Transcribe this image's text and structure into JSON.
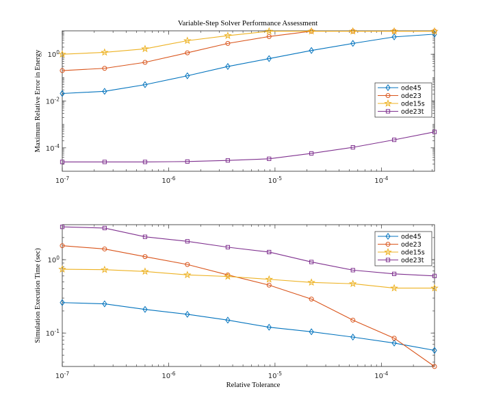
{
  "figure": {
    "title": "Variable-Step Solver Performance Assessment"
  },
  "chart_data": [
    {
      "type": "line",
      "title": "Variable-Step Solver Performance Assessment",
      "xlabel": "",
      "ylabel": "Maximum Relative Error in Energy",
      "xscale": "log",
      "yscale": "log",
      "xlim": [
        1e-07,
        0.000316
      ],
      "ylim": [
        1e-05,
        10
      ],
      "xticks": [
        1e-07,
        1e-06,
        1e-05,
        0.0001
      ],
      "xtick_labels": [
        {
          "base": "10",
          "exp": "-7"
        },
        {
          "base": "10",
          "exp": "-6"
        },
        {
          "base": "10",
          "exp": "-5"
        },
        {
          "base": "10",
          "exp": "-4"
        }
      ],
      "yticks": [
        0.0001,
        0.01,
        1
      ],
      "ytick_labels": [
        {
          "base": "10",
          "exp": "-4"
        },
        {
          "base": "10",
          "exp": "-2"
        },
        {
          "base": "10",
          "exp": "0"
        }
      ],
      "grid": false,
      "legend_position": "right",
      "x": [
        1e-07,
        2.5e-07,
        6e-07,
        1.5e-06,
        3.6e-06,
        8.8e-06,
        2.2e-05,
        5.4e-05,
        0.000132,
        0.000316
      ],
      "series": [
        {
          "name": "ode45",
          "color": "#0072BD",
          "marker": "diamond",
          "values": [
            0.021,
            0.026,
            0.05,
            0.12,
            0.3,
            0.65,
            1.45,
            2.9,
            5.5,
            7.2
          ]
        },
        {
          "name": "ode23",
          "color": "#D95319",
          "marker": "circle",
          "values": [
            0.2,
            0.25,
            0.45,
            1.15,
            2.9,
            5.7,
            9.6,
            9.6,
            9.6,
            9.6
          ]
        },
        {
          "name": "ode15s",
          "color": "#EDB120",
          "marker": "star",
          "values": [
            1.0,
            1.2,
            1.7,
            3.8,
            6.2,
            9.6,
            9.6,
            9.6,
            9.6,
            9.6
          ]
        },
        {
          "name": "ode23t",
          "color": "#7E2F8E",
          "marker": "square",
          "values": [
            2.5e-05,
            2.5e-05,
            2.5e-05,
            2.6e-05,
            2.9e-05,
            3.4e-05,
            5.8e-05,
            0.000105,
            0.00022,
            0.00048
          ]
        }
      ]
    },
    {
      "type": "line",
      "title": "",
      "xlabel": "Relative Tolerance",
      "ylabel": "Simulation Execution Time (sec)",
      "xscale": "log",
      "yscale": "log",
      "xlim": [
        1e-07,
        0.000316
      ],
      "ylim": [
        0.035,
        3.0
      ],
      "xticks": [
        1e-07,
        1e-06,
        1e-05,
        0.0001
      ],
      "xtick_labels": [
        {
          "base": "10",
          "exp": "-7"
        },
        {
          "base": "10",
          "exp": "-6"
        },
        {
          "base": "10",
          "exp": "-5"
        },
        {
          "base": "10",
          "exp": "-4"
        }
      ],
      "yticks": [
        0.1,
        1
      ],
      "ytick_labels": [
        {
          "base": "10",
          "exp": "-1"
        },
        {
          "base": "10",
          "exp": "0"
        }
      ],
      "grid": false,
      "legend_position": "top-right",
      "x": [
        1e-07,
        2.5e-07,
        6e-07,
        1.5e-06,
        3.6e-06,
        8.8e-06,
        2.2e-05,
        5.4e-05,
        0.000132,
        0.000316
      ],
      "series": [
        {
          "name": "ode45",
          "color": "#0072BD",
          "marker": "diamond",
          "values": [
            0.26,
            0.25,
            0.21,
            0.18,
            0.15,
            0.12,
            0.104,
            0.088,
            0.073,
            0.058
          ]
        },
        {
          "name": "ode23",
          "color": "#D95319",
          "marker": "circle",
          "values": [
            1.55,
            1.4,
            1.1,
            0.86,
            0.62,
            0.45,
            0.29,
            0.15,
            0.085,
            0.035
          ]
        },
        {
          "name": "ode15s",
          "color": "#EDB120",
          "marker": "star",
          "values": [
            0.74,
            0.73,
            0.69,
            0.62,
            0.59,
            0.54,
            0.49,
            0.47,
            0.41,
            0.41
          ]
        },
        {
          "name": "ode23t",
          "color": "#7E2F8E",
          "marker": "square",
          "values": [
            2.8,
            2.7,
            2.05,
            1.78,
            1.48,
            1.27,
            0.93,
            0.72,
            0.64,
            0.6
          ]
        }
      ]
    }
  ]
}
